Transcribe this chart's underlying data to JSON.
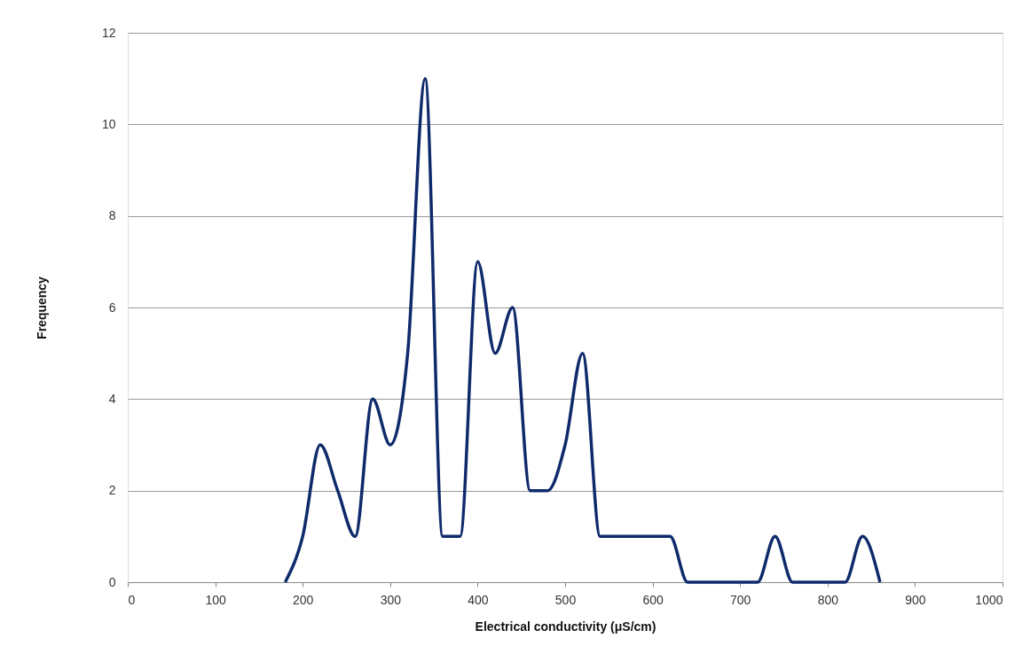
{
  "chart_data": {
    "type": "line",
    "xlabel": "Electrical conductivity (μS/cm)",
    "ylabel": "Frequency",
    "x": [
      180,
      200,
      220,
      240,
      260,
      280,
      300,
      320,
      340,
      360,
      380,
      400,
      420,
      440,
      460,
      480,
      500,
      520,
      540,
      560,
      580,
      600,
      620,
      640,
      660,
      680,
      700,
      720,
      740,
      760,
      780,
      800,
      820,
      840,
      860
    ],
    "series": [
      {
        "color": "#0f2a6b",
        "values": [
          0,
          1,
          3,
          2,
          1,
          4,
          3,
          5,
          11,
          1,
          1,
          7,
          5,
          6,
          2,
          2,
          3,
          5,
          1,
          1,
          1,
          1,
          1,
          0,
          0,
          0,
          0,
          0,
          1,
          0,
          0,
          0,
          0,
          1,
          0
        ]
      }
    ],
    "xlim": [
      0,
      1000
    ],
    "xticks": [
      0,
      100,
      200,
      300,
      400,
      500,
      600,
      700,
      800,
      900,
      1000
    ],
    "ylim": [
      0,
      12
    ],
    "yticks": [
      0,
      2,
      4,
      6,
      8,
      10,
      12
    ],
    "grid": "y",
    "marker": "none",
    "line_style": "solid"
  }
}
